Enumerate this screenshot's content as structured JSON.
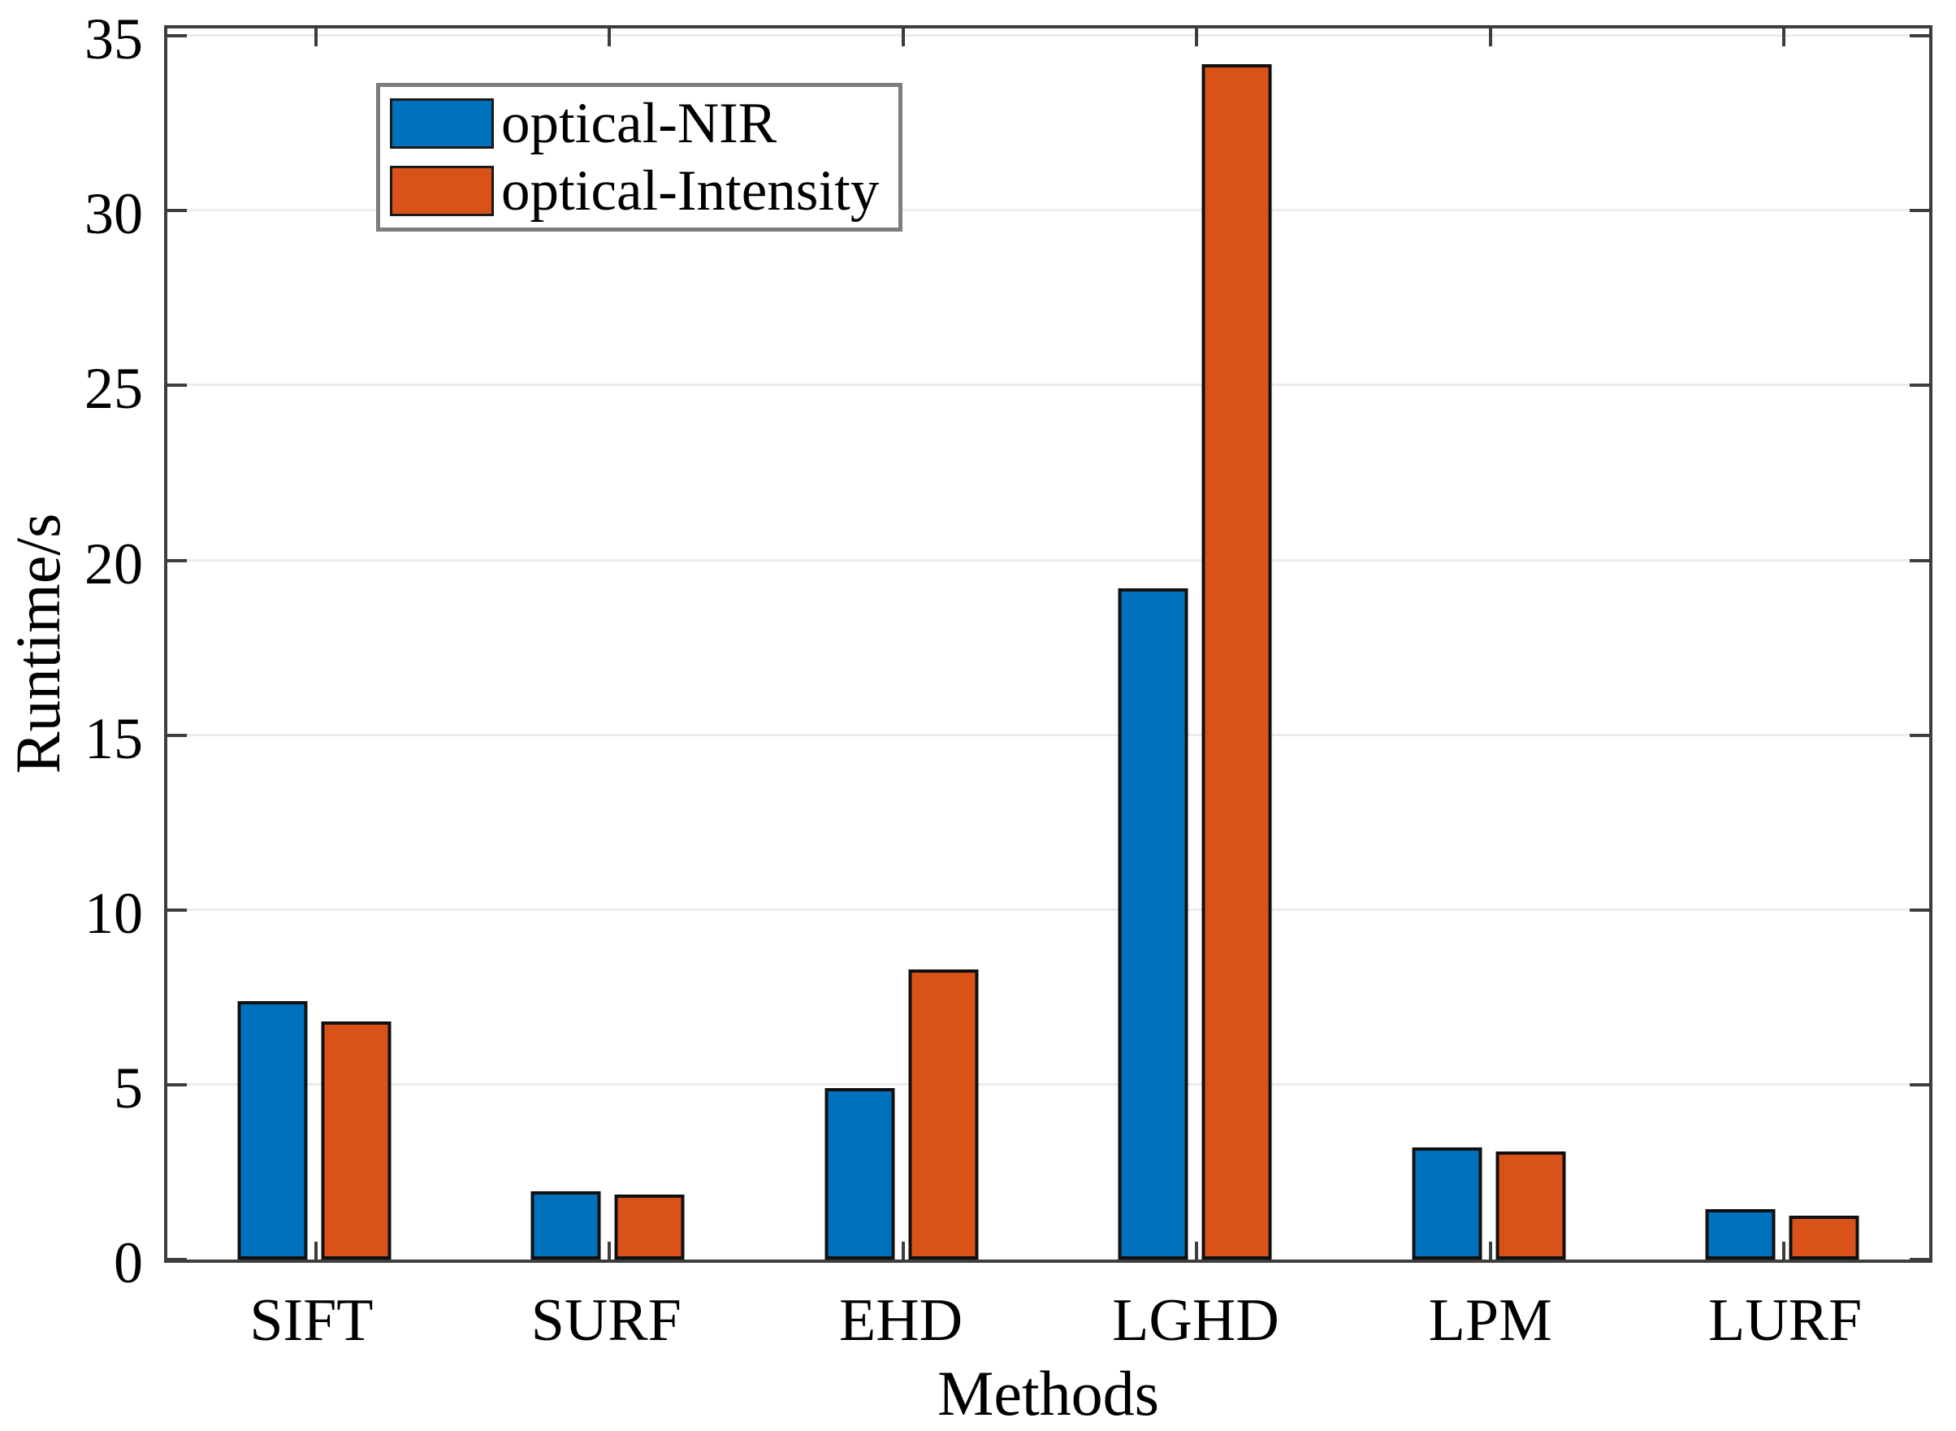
{
  "chart_data": {
    "type": "bar",
    "title": "",
    "xlabel": "Methods",
    "ylabel": "Runtime/s",
    "categories": [
      "SIFT",
      "SURF",
      "EHD",
      "LGHD",
      "LPM",
      "LURF"
    ],
    "series": [
      {
        "name": "optical-NIR",
        "color": "#0072BD",
        "values": [
          7.4,
          1.95,
          4.9,
          19.2,
          3.2,
          1.45
        ]
      },
      {
        "name": "optical-Intensity",
        "color": "#D95319",
        "values": [
          6.8,
          1.85,
          8.3,
          34.2,
          3.1,
          1.25
        ]
      }
    ],
    "ylim": [
      0,
      35.4
    ],
    "yticks": [
      0,
      5,
      10,
      15,
      20,
      25,
      30,
      35
    ],
    "grid": "horizontal",
    "legend_position": "top-left",
    "bar_edge_color": "#101010",
    "axis_color": "#3d3d3d",
    "grid_color": "#ececec",
    "background_color": "#ffffff"
  }
}
